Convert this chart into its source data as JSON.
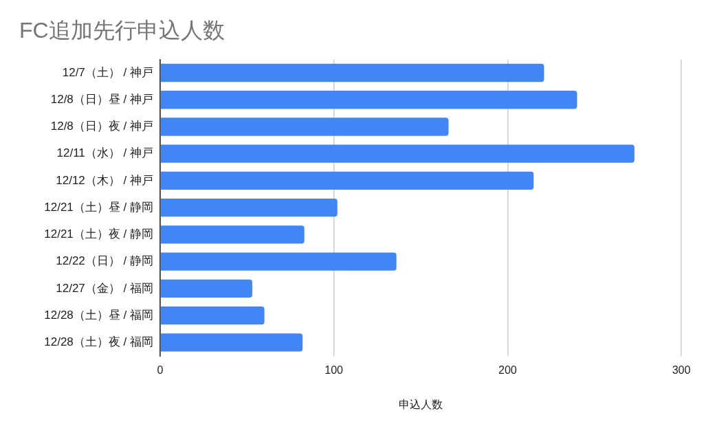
{
  "chart_data": {
    "type": "bar",
    "orientation": "horizontal",
    "title": "FC追加先行申込人数",
    "xlabel": "申込人数",
    "categories": [
      "12/7（土） / 神戸",
      "12/8（日）昼 / 神戸",
      "12/8（日）夜 / 神戸",
      "12/11（水） / 神戸",
      "12/12（木） / 神戸",
      "12/21（土）昼 / 静岡",
      "12/21（土）夜 / 静岡",
      "12/22（日） / 静岡",
      "12/27（金） / 福岡",
      "12/28（土）昼 / 福岡",
      "12/28（土）夜 / 福岡"
    ],
    "values": [
      221,
      240,
      166,
      273,
      215,
      102,
      83,
      136,
      53,
      60,
      82
    ],
    "color": "#4285f4",
    "xlim": [
      0,
      300
    ],
    "xticks": [
      0,
      100,
      200,
      300
    ],
    "grid": "x"
  }
}
